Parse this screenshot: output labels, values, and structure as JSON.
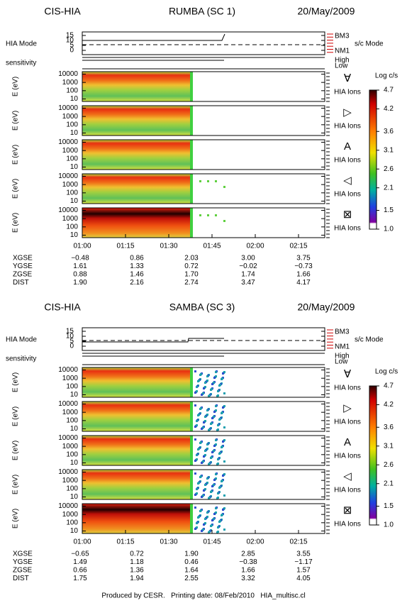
{
  "chart_data": [
    {
      "type": "spectrogram",
      "instrument": "CIS-HIA",
      "title": "RUMBA (SC 1)",
      "date": "20/May/2009",
      "mode_label": "HIA Mode",
      "mode_ticks": [
        15,
        10,
        5,
        0
      ],
      "mode_names": [
        "BM3",
        "NM1"
      ],
      "sc_mode_label": "s/c Mode",
      "sensitivity_label": "sensitivity",
      "sensitivity_levels": [
        "High",
        "Low"
      ],
      "y_label": "E (eV)",
      "yscale": "log",
      "ylim": [
        5,
        20000
      ],
      "yticks": [
        10000,
        1000,
        100,
        10
      ],
      "panels": [
        {
          "symbol": "∀",
          "label": "HIA Ions"
        },
        {
          "symbol": "▷",
          "label": "HIA Ions"
        },
        {
          "symbol": "A",
          "label": "HIA Ions"
        },
        {
          "symbol": "◁",
          "label": "HIA Ions"
        },
        {
          "symbol": "⊠",
          "label": "HIA Ions"
        }
      ],
      "colorbar": {
        "label": "Log c/s",
        "ylim": [
          1,
          4.7
        ],
        "ticks": [
          4.7,
          4.2,
          3.6,
          3.1,
          2.6,
          2.1,
          1.5,
          {
            "value": 1,
            "label": "1.0"
          }
        ]
      },
      "x_labels": [
        "01:00",
        "01:15",
        "01:30",
        "01:45",
        "02:00",
        "02:15"
      ],
      "ephemeris": [
        [
          "XGSE",
          "−0.48",
          "0.86",
          "2.03",
          "3.00",
          "3.75"
        ],
        [
          "YGSE",
          "1.61",
          "1.33",
          "0.72",
          "−0.02",
          "−0.73"
        ],
        [
          "ZGSE",
          "0.88",
          "1.46",
          "1.70",
          "1.74",
          "1.66"
        ],
        [
          "DIST",
          "1.90",
          "2.16",
          "2.74",
          "3.47",
          "4.17"
        ]
      ]
    },
    {
      "type": "spectrogram",
      "instrument": "CIS-HIA",
      "title": "SAMBA (SC 3)",
      "date": "20/May/2009",
      "mode_label": "HIA Mode",
      "mode_ticks": [
        15,
        10,
        5,
        0
      ],
      "mode_names": [
        "BM3",
        "NM1"
      ],
      "sc_mode_label": "s/c Mode",
      "sensitivity_label": "sensitivity",
      "sensitivity_levels": [
        "High",
        "Low"
      ],
      "y_label": "E (eV)",
      "yscale": "log",
      "ylim": [
        5,
        20000
      ],
      "yticks": [
        10000,
        1000,
        100,
        10
      ],
      "panels": [
        {
          "symbol": "∀",
          "label": "HIA Ions"
        },
        {
          "symbol": "▷",
          "label": "HIA Ions"
        },
        {
          "symbol": "A",
          "label": "HIA Ions"
        },
        {
          "symbol": "◁",
          "label": "HIA Ions"
        },
        {
          "symbol": "⊠",
          "label": "HIA Ions"
        }
      ],
      "colorbar": {
        "label": "Log c/s",
        "ylim": [
          1,
          4.7
        ],
        "ticks": [
          4.7,
          4.2,
          3.6,
          3.1,
          2.6,
          2.1,
          1.5,
          {
            "value": 1,
            "label": "1.0"
          }
        ]
      },
      "x_labels": [
        "01:00",
        "01:15",
        "01:30",
        "01:45",
        "02:00",
        "02:15"
      ],
      "ephemeris": [
        [
          "XGSE",
          "−0.65",
          "0.72",
          "1.90",
          "2.85",
          "3.55"
        ],
        [
          "YGSE",
          "1.49",
          "1.18",
          "0.46",
          "−0.38",
          "−1.17"
        ],
        [
          "ZGSE",
          "0.66",
          "1.36",
          "1.64",
          "1.66",
          "1.57"
        ],
        [
          "DIST",
          "1.75",
          "1.94",
          "2.55",
          "3.32",
          "4.05"
        ]
      ]
    }
  ],
  "footer": "Produced by CESR.   Printing date: 08/Feb/2010   HIA_multisc.cl"
}
